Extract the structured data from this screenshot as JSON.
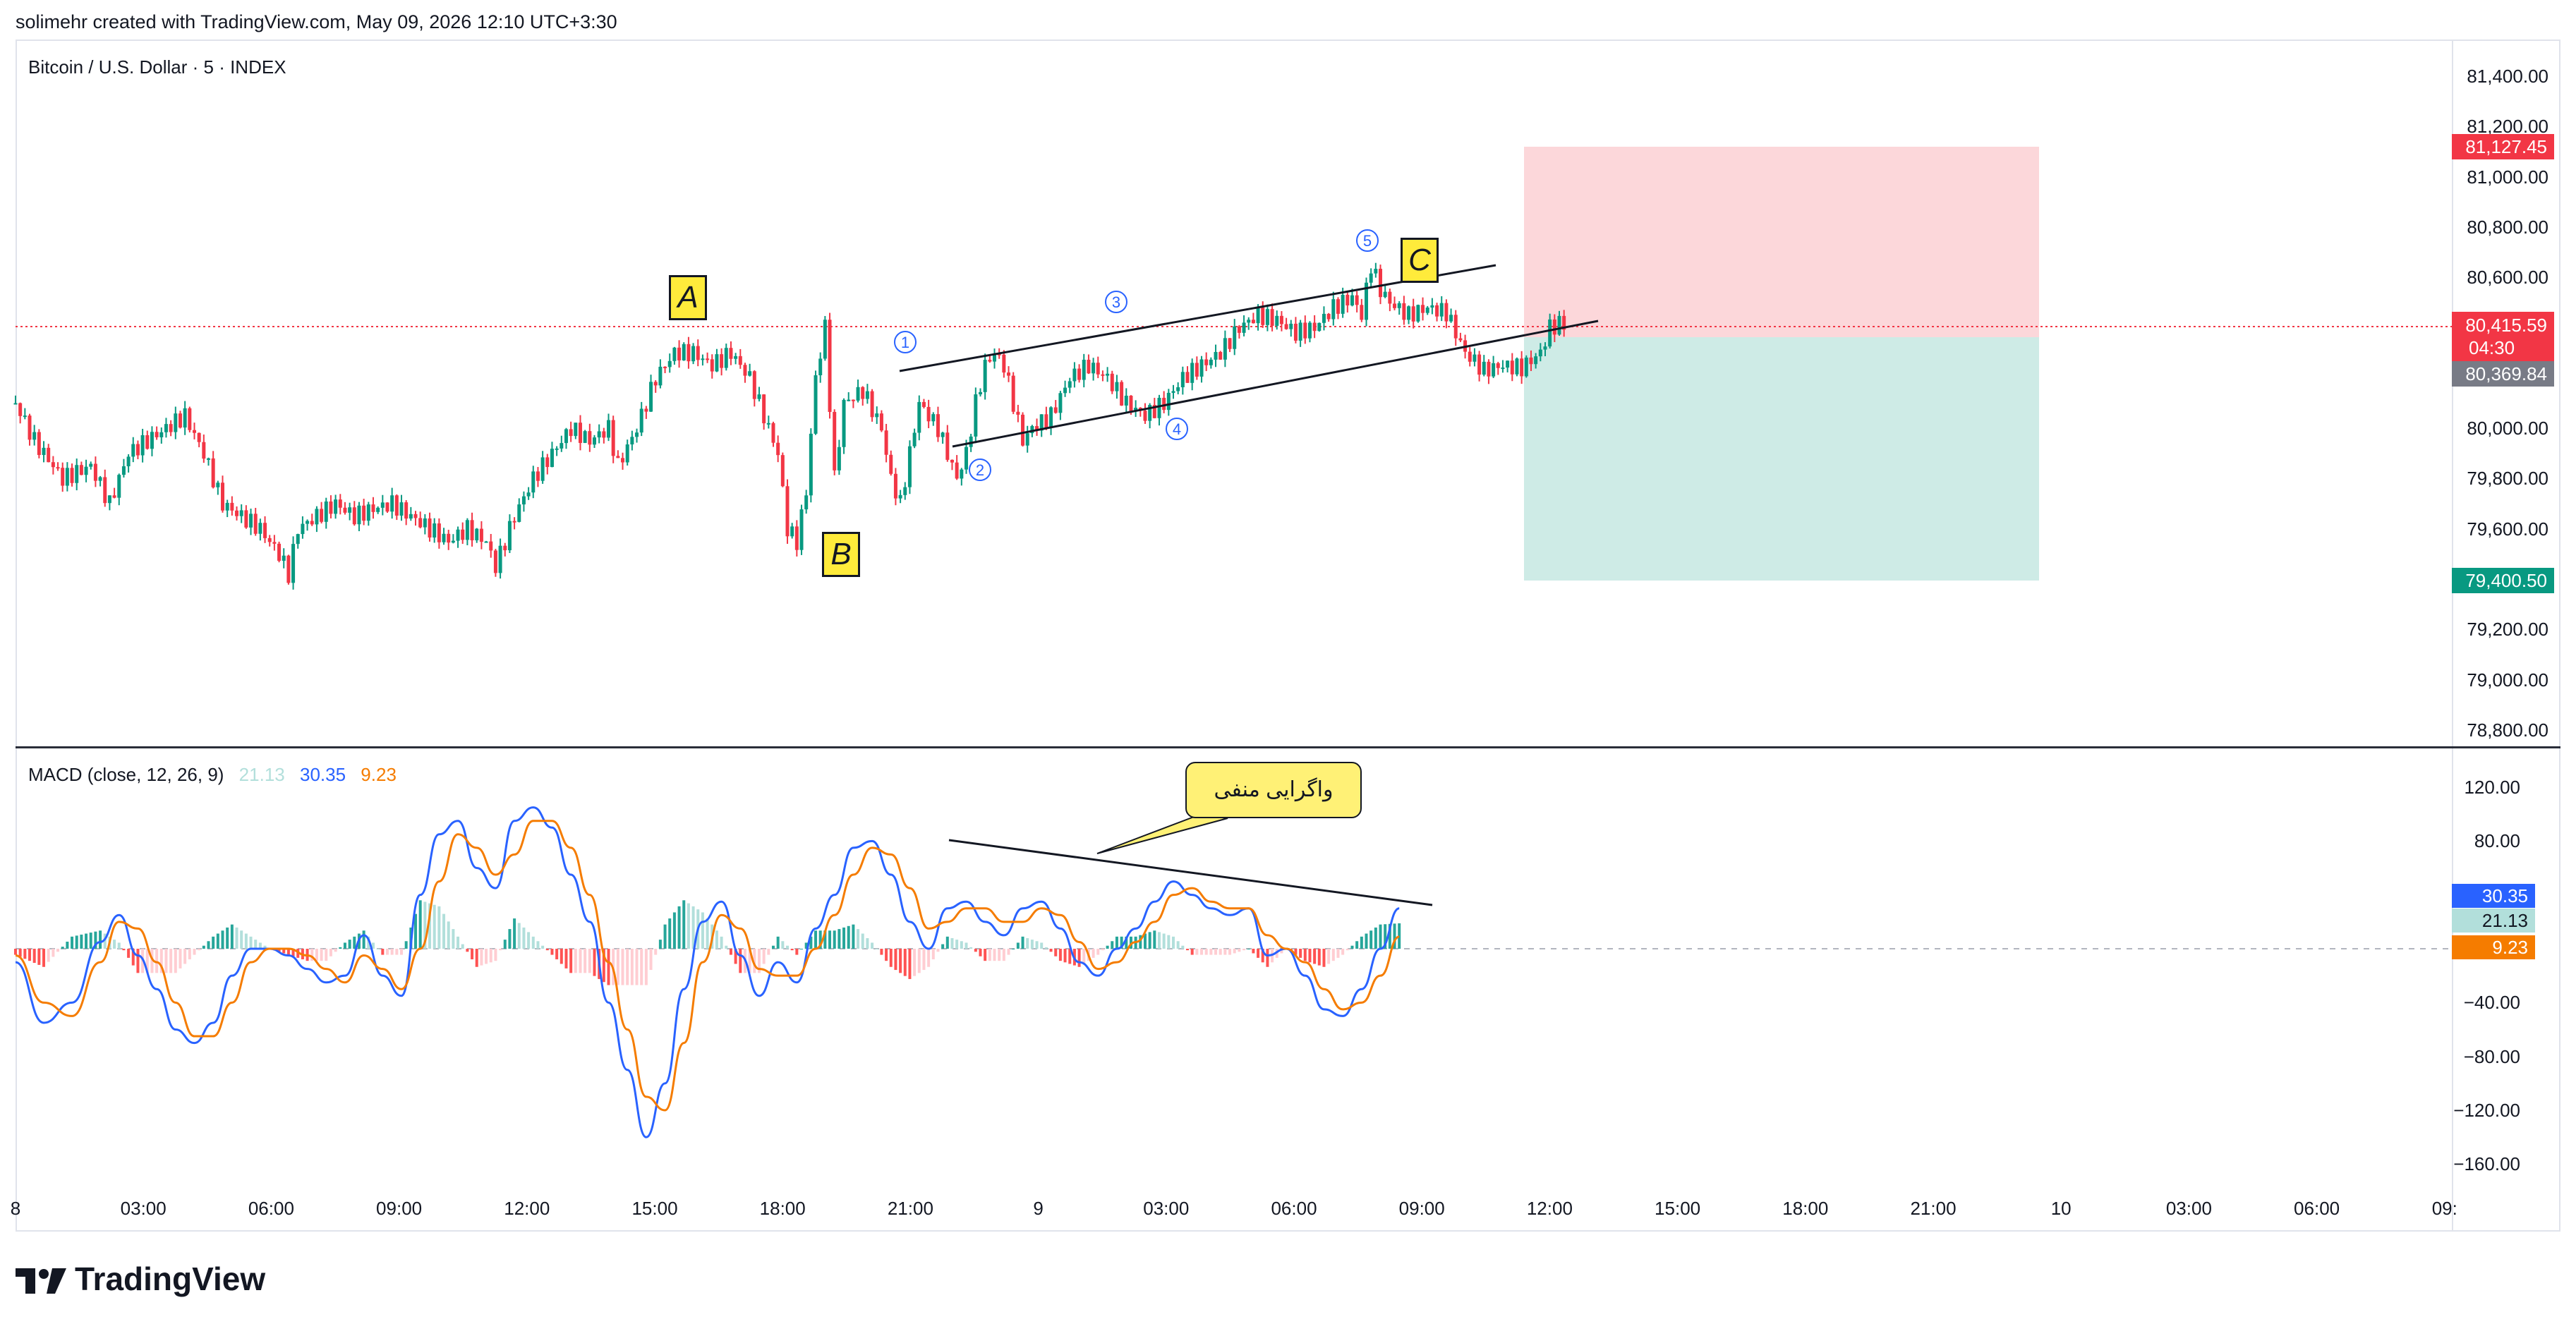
{
  "header": {
    "credit": "solimehr created with TradingView.com, May 09, 2026 12:10 UTC+3:30",
    "symbol": "Bitcoin / U.S. Dollar · 5 · INDEX"
  },
  "macd_panel": {
    "title": "MACD (close, 12, 26, 9)",
    "hist_value": "21.13",
    "macd_value": "30.35",
    "signal_value": "9.23",
    "hist_color": "#b2dfdb",
    "macd_color": "#2962ff",
    "signal_color": "#f57c00"
  },
  "price_axis": {
    "ticks": [
      "81,400.00",
      "81,200.00",
      "81,000.00",
      "80,800.00",
      "80,600.00",
      "80,000.00",
      "79,800.00",
      "79,600.00",
      "79,200.00",
      "79,000.00",
      "78,800.00"
    ],
    "tags": {
      "stop": "81,127.45",
      "current": "80,415.59",
      "countdown": "04:30",
      "entry": "80,369.84",
      "target": "79,400.50"
    },
    "tag_colors": {
      "stop": "#f23645",
      "current": "#f23645",
      "entry": "#787b86",
      "target": "#089981"
    }
  },
  "macd_axis": {
    "ticks": [
      "120.00",
      "80.00",
      "−40.00",
      "−80.00",
      "−120.00",
      "−160.00"
    ],
    "tags": {
      "macd": "30.35",
      "hist": "21.13",
      "signal": "9.23"
    }
  },
  "time_axis": {
    "labels": [
      "8",
      "03:00",
      "06:00",
      "09:00",
      "12:00",
      "15:00",
      "18:00",
      "21:00",
      "9",
      "03:00",
      "06:00",
      "09:00",
      "12:00",
      "15:00",
      "18:00",
      "21:00",
      "10",
      "03:00",
      "06:00",
      "09:"
    ]
  },
  "annotations": {
    "wave_labels": [
      "A",
      "B",
      "C"
    ],
    "subwaves": [
      "1",
      "2",
      "3",
      "4",
      "5"
    ],
    "callout": "واگرایی منفی"
  },
  "branding": {
    "logo": "TradingView"
  },
  "chart_data": [
    {
      "type": "candlestick",
      "title": "Bitcoin / U.S. Dollar · 5 · INDEX",
      "xlabel": "",
      "ylabel": "",
      "ylim": [
        78700,
        81500
      ],
      "x_ticks": [
        "8",
        "03:00",
        "06:00",
        "09:00",
        "12:00",
        "15:00",
        "18:00",
        "21:00",
        "9",
        "03:00",
        "06:00",
        "09:00",
        "12:00"
      ],
      "series": [
        {
          "name": "",
          "close_path": [
            [
              0,
              80100
            ],
            [
              2,
              79950
            ],
            [
              5,
              79800
            ],
            [
              8,
              79850
            ],
            [
              10,
              79700
            ],
            [
              12,
              79900
            ],
            [
              14,
              79950
            ],
            [
              16,
              80000
            ],
            [
              18,
              80050
            ],
            [
              20,
              79900
            ],
            [
              22,
              79700
            ],
            [
              24,
              79650
            ],
            [
              26,
              79600
            ],
            [
              28,
              79500
            ],
            [
              29,
              79420
            ],
            [
              30,
              79600
            ],
            [
              32,
              79650
            ],
            [
              34,
              79700
            ],
            [
              36,
              79650
            ],
            [
              38,
              79680
            ],
            [
              40,
              79700
            ],
            [
              42,
              79650
            ],
            [
              44,
              79600
            ],
            [
              46,
              79550
            ],
            [
              48,
              79600
            ],
            [
              50,
              79550
            ],
            [
              51,
              79450
            ],
            [
              53,
              79650
            ],
            [
              55,
              79800
            ],
            [
              57,
              79900
            ],
            [
              59,
              80000
            ],
            [
              61,
              79950
            ],
            [
              63,
              80000
            ],
            [
              64,
              79850
            ],
            [
              66,
              80000
            ],
            [
              68,
              80200
            ],
            [
              70,
              80300
            ],
            [
              72,
              80300
            ],
            [
              74,
              80250
            ],
            [
              76,
              80300
            ],
            [
              78,
              80200
            ],
            [
              80,
              80000
            ],
            [
              81,
              79900
            ],
            [
              82,
              79600
            ],
            [
              83,
              79550
            ],
            [
              84,
              79750
            ],
            [
              85,
              80200
            ],
            [
              86,
              80400
            ],
            [
              87,
              79800
            ],
            [
              88,
              80100
            ],
            [
              90,
              80150
            ],
            [
              92,
              80000
            ],
            [
              93,
              79800
            ],
            [
              94,
              79700
            ],
            [
              95,
              79900
            ],
            [
              96,
              80100
            ],
            [
              97,
              80050
            ],
            [
              98,
              80000
            ],
            [
              99,
              79900
            ],
            [
              100,
              79800
            ],
            [
              101,
              79900
            ],
            [
              102,
              80100
            ],
            [
              103,
              80250
            ],
            [
              104,
              80300
            ],
            [
              105,
              80250
            ],
            [
              106,
              80100
            ],
            [
              107,
              79950
            ],
            [
              108,
              80000
            ],
            [
              110,
              80050
            ],
            [
              112,
              80200
            ],
            [
              114,
              80250
            ],
            [
              116,
              80200
            ],
            [
              118,
              80100
            ],
            [
              120,
              80050
            ],
            [
              122,
              80100
            ],
            [
              124,
              80200
            ],
            [
              126,
              80250
            ],
            [
              128,
              80300
            ],
            [
              130,
              80400
            ],
            [
              132,
              80450
            ],
            [
              134,
              80430
            ],
            [
              136,
              80380
            ],
            [
              138,
              80400
            ],
            [
              140,
              80480
            ],
            [
              142,
              80520
            ],
            [
              143,
              80450
            ],
            [
              144,
              80650
            ],
            [
              145,
              80550
            ],
            [
              146,
              80500
            ],
            [
              148,
              80450
            ],
            [
              150,
              80480
            ],
            [
              152,
              80460
            ],
            [
              153,
              80380
            ],
            [
              154,
              80300
            ],
            [
              156,
              80230
            ],
            [
              158,
              80250
            ],
            [
              160,
              80240
            ],
            [
              162,
              80300
            ],
            [
              163,
              80400
            ],
            [
              164,
              80415
            ]
          ]
        }
      ]
    },
    {
      "type": "line",
      "title": "MACD (close, 12, 26, 9)",
      "x_ticks": [
        "8",
        "03:00",
        "06:00",
        "09:00",
        "12:00",
        "15:00",
        "18:00",
        "21:00",
        "9",
        "03:00",
        "06:00",
        "09:00",
        "12:00"
      ],
      "ylim": [
        -170,
        130
      ],
      "series": [
        {
          "name": "MACD",
          "values": [
            [
              0,
              -10
            ],
            [
              3,
              -55
            ],
            [
              6,
              -40
            ],
            [
              9,
              5
            ],
            [
              11,
              25
            ],
            [
              13,
              -5
            ],
            [
              15,
              -30
            ],
            [
              17,
              -60
            ],
            [
              19,
              -70
            ],
            [
              21,
              -55
            ],
            [
              23,
              -20
            ],
            [
              25,
              0
            ],
            [
              27,
              0
            ],
            [
              29,
              -5
            ],
            [
              31,
              -15
            ],
            [
              33,
              -25
            ],
            [
              35,
              -20
            ],
            [
              37,
              10
            ],
            [
              39,
              -20
            ],
            [
              41,
              -35
            ],
            [
              43,
              40
            ],
            [
              45,
              85
            ],
            [
              47,
              95
            ],
            [
              49,
              60
            ],
            [
              51,
              45
            ],
            [
              53,
              95
            ],
            [
              55,
              105
            ],
            [
              57,
              90
            ],
            [
              59,
              55
            ],
            [
              61,
              20
            ],
            [
              63,
              -40
            ],
            [
              65,
              -90
            ],
            [
              67,
              -140
            ],
            [
              69,
              -100
            ],
            [
              71,
              -30
            ],
            [
              73,
              20
            ],
            [
              75,
              35
            ],
            [
              77,
              -5
            ],
            [
              79,
              -35
            ],
            [
              81,
              -10
            ],
            [
              83,
              -25
            ],
            [
              85,
              15
            ],
            [
              87,
              40
            ],
            [
              89,
              75
            ],
            [
              91,
              80
            ],
            [
              93,
              55
            ],
            [
              95,
              20
            ],
            [
              97,
              0
            ],
            [
              99,
              30
            ],
            [
              101,
              35
            ],
            [
              103,
              20
            ],
            [
              105,
              10
            ],
            [
              107,
              30
            ],
            [
              109,
              35
            ],
            [
              111,
              15
            ],
            [
              113,
              -10
            ],
            [
              115,
              -20
            ],
            [
              117,
              0
            ],
            [
              119,
              15
            ],
            [
              121,
              35
            ],
            [
              123,
              50
            ],
            [
              125,
              40
            ],
            [
              127,
              30
            ],
            [
              129,
              25
            ],
            [
              131,
              30
            ],
            [
              133,
              -5
            ],
            [
              135,
              0
            ],
            [
              137,
              -20
            ],
            [
              139,
              -45
            ],
            [
              141,
              -50
            ],
            [
              143,
              -30
            ],
            [
              145,
              0
            ],
            [
              147,
              30
            ]
          ]
        },
        {
          "name": "Signal",
          "values": [
            [
              0,
              -5
            ],
            [
              3,
              -40
            ],
            [
              6,
              -50
            ],
            [
              9,
              -10
            ],
            [
              11,
              20
            ],
            [
              13,
              15
            ],
            [
              15,
              -10
            ],
            [
              17,
              -40
            ],
            [
              19,
              -65
            ],
            [
              21,
              -65
            ],
            [
              23,
              -40
            ],
            [
              25,
              -10
            ],
            [
              27,
              0
            ],
            [
              29,
              0
            ],
            [
              31,
              -5
            ],
            [
              33,
              -15
            ],
            [
              35,
              -25
            ],
            [
              37,
              -5
            ],
            [
              39,
              -15
            ],
            [
              41,
              -30
            ],
            [
              43,
              0
            ],
            [
              45,
              50
            ],
            [
              47,
              85
            ],
            [
              49,
              75
            ],
            [
              51,
              55
            ],
            [
              53,
              70
            ],
            [
              55,
              95
            ],
            [
              57,
              95
            ],
            [
              59,
              75
            ],
            [
              61,
              40
            ],
            [
              63,
              -10
            ],
            [
              65,
              -60
            ],
            [
              67,
              -110
            ],
            [
              69,
              -120
            ],
            [
              71,
              -70
            ],
            [
              73,
              -10
            ],
            [
              75,
              25
            ],
            [
              77,
              15
            ],
            [
              79,
              -15
            ],
            [
              81,
              -20
            ],
            [
              83,
              -20
            ],
            [
              85,
              0
            ],
            [
              87,
              25
            ],
            [
              89,
              55
            ],
            [
              91,
              75
            ],
            [
              93,
              70
            ],
            [
              95,
              45
            ],
            [
              97,
              15
            ],
            [
              99,
              20
            ],
            [
              101,
              30
            ],
            [
              103,
              30
            ],
            [
              105,
              20
            ],
            [
              107,
              20
            ],
            [
              109,
              30
            ],
            [
              111,
              25
            ],
            [
              113,
              5
            ],
            [
              115,
              -15
            ],
            [
              117,
              -10
            ],
            [
              119,
              5
            ],
            [
              121,
              20
            ],
            [
              123,
              40
            ],
            [
              125,
              45
            ],
            [
              127,
              35
            ],
            [
              129,
              30
            ],
            [
              131,
              30
            ],
            [
              133,
              10
            ],
            [
              135,
              0
            ],
            [
              137,
              -10
            ],
            [
              139,
              -30
            ],
            [
              141,
              -45
            ],
            [
              143,
              -40
            ],
            [
              145,
              -20
            ],
            [
              147,
              9
            ]
          ]
        }
      ],
      "histogram_value": 21.13
    }
  ]
}
